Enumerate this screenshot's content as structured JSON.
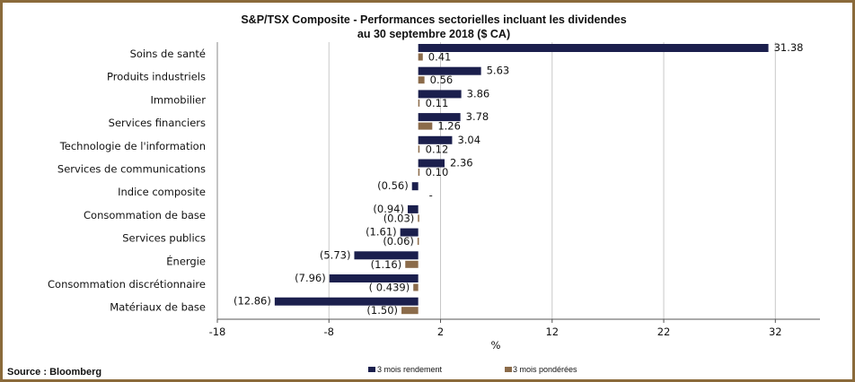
{
  "chart_data": {
    "type": "bar",
    "orientation": "horizontal",
    "title": "S&P/TSX Composite - Performances sectorielles incluant les dividendes",
    "subtitle": "au 30 septembre 2018 ($ CA)",
    "xlabel": "%",
    "ylabel": "",
    "xlim": [
      -18,
      36
    ],
    "xticks": [
      -18,
      -8,
      2,
      12,
      22,
      32
    ],
    "xtick_labels": [
      "-18",
      "-8",
      "2",
      "12",
      "22",
      "32"
    ],
    "grid": "vertical",
    "legend_position": "bottom",
    "categories": [
      "Soins de santé",
      "Produits industriels",
      "Immobilier",
      "Services financiers",
      "Technologie de l'information",
      "Services de communications",
      "Indice composite",
      "Consommation de base",
      "Services publics",
      "Énergie",
      "Consommation discrétionnaire",
      "Matériaux de base"
    ],
    "series": [
      {
        "name": "3 mois rendement",
        "color": "#1b1f4d",
        "values": [
          31.38,
          5.63,
          3.86,
          3.78,
          3.04,
          2.36,
          -0.56,
          -0.94,
          -1.61,
          -5.73,
          -7.96,
          -12.86
        ],
        "labels": [
          "31.38",
          "5.63",
          "3.86",
          "3.78",
          "3.04",
          "2.36",
          "(0.56)",
          "(0.94)",
          "(1.61)",
          "(5.73)",
          "(7.96)",
          "(12.86)"
        ]
      },
      {
        "name": "3 mois pondérées",
        "color": "#8b6b4a",
        "values": [
          0.41,
          0.56,
          0.11,
          1.26,
          0.12,
          0.1,
          null,
          -0.03,
          -0.06,
          -1.16,
          -0.439,
          -1.5
        ],
        "labels": [
          "0.41",
          "0.56",
          "0.11",
          "1.26",
          "0.12",
          "0.10",
          "-",
          "(0.03)",
          "(0.06)",
          "(1.16)",
          "( 0.439)",
          "(1.50)"
        ]
      }
    ]
  },
  "source": "Source : Bloomberg"
}
